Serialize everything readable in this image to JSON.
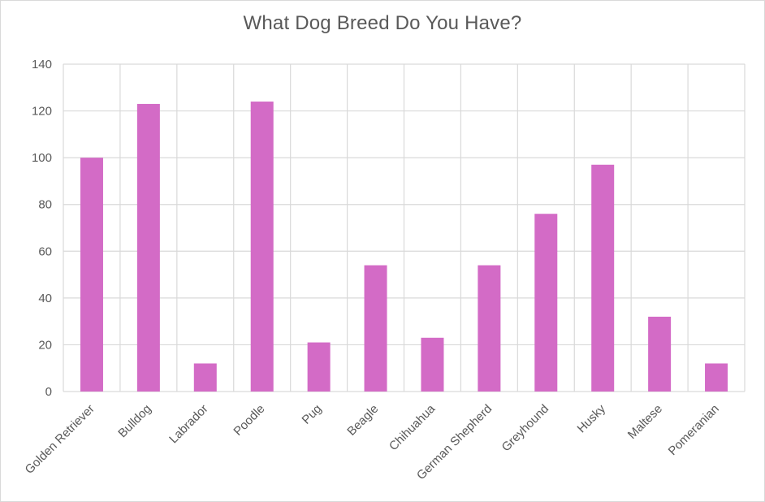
{
  "chart_data": {
    "type": "bar",
    "title": "What Dog Breed Do You Have?",
    "xlabel": "",
    "ylabel": "",
    "categories": [
      "Golden Retriever",
      "Bulldog",
      "Labrador",
      "Poodle",
      "Pug",
      "Beagle",
      "Chihuahua",
      "German Shepherd",
      "Greyhound",
      "Husky",
      "Maltese",
      "Pomeranian"
    ],
    "values": [
      100,
      123,
      12,
      124,
      21,
      54,
      23,
      54,
      76,
      97,
      32,
      12
    ],
    "ylim": [
      0,
      140
    ],
    "yticks": [
      0,
      20,
      40,
      60,
      80,
      100,
      120,
      140
    ],
    "grid": true,
    "legend": "none",
    "bar_color": "#d36bc6",
    "grid_color": "#d9d9d9"
  }
}
